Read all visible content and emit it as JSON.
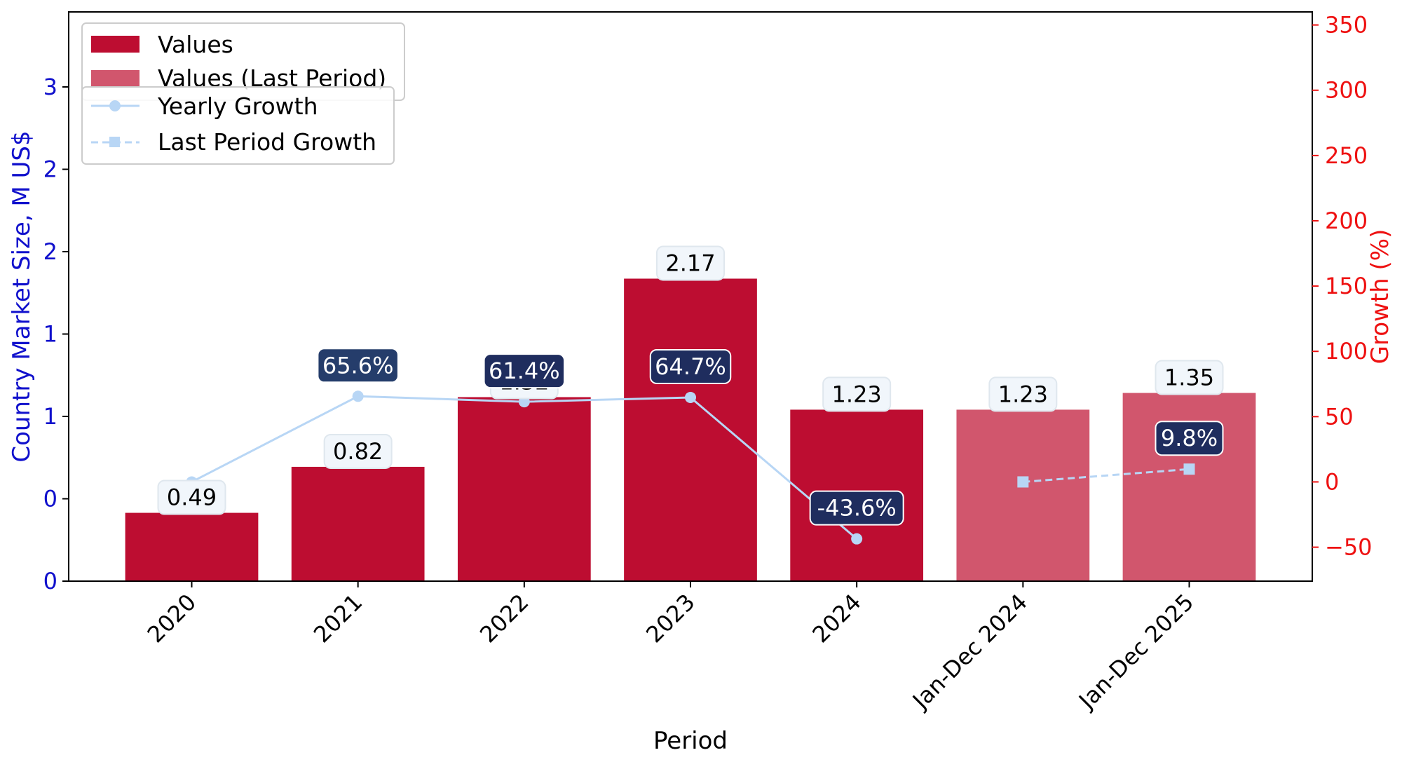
{
  "chart_data": {
    "type": "bar",
    "categories": [
      "2020",
      "2021",
      "2022",
      "2023",
      "2024",
      "Jan-Dec 2024",
      "Jan-Dec 2025"
    ],
    "series": [
      {
        "name": "Values",
        "kind": "bar",
        "values": [
          0.49,
          0.82,
          1.32,
          2.17,
          1.23,
          null,
          null
        ],
        "value_labels": [
          "0.49",
          "0.82",
          "1.32",
          "2.17",
          "1.23",
          "",
          ""
        ]
      },
      {
        "name": "Values (Last Period)",
        "kind": "bar",
        "values": [
          null,
          null,
          null,
          null,
          null,
          1.23,
          1.35
        ],
        "value_labels": [
          "",
          "",
          "",
          "",
          "",
          "1.23",
          "1.35"
        ]
      },
      {
        "name": "Yearly Growth",
        "kind": "line",
        "axis": "right",
        "values": [
          0,
          65.6,
          61.4,
          64.7,
          -43.6,
          null,
          null
        ],
        "value_labels": [
          "",
          "65.6%",
          "61.4%",
          "64.7%",
          "-43.6%",
          "",
          ""
        ]
      },
      {
        "name": "Last Period Growth",
        "kind": "line",
        "axis": "right",
        "values": [
          null,
          null,
          null,
          null,
          null,
          0,
          9.8
        ],
        "value_labels": [
          "",
          "",
          "",
          "",
          "",
          "",
          "9.8%"
        ]
      }
    ],
    "xlabel": "Period",
    "ylabel": "Country Market Size, M US$",
    "y2label": "Growth (%)",
    "left_ticks": [
      "0",
      "0",
      "1",
      "1",
      "2",
      "2",
      "3"
    ],
    "right_ticks": [
      "−50",
      "0",
      "50",
      "100",
      "150",
      "200",
      "250",
      "300",
      "350"
    ],
    "ylim_right": [
      -76,
      360
    ],
    "grid": false,
    "legend_placement": "top-left",
    "colors": {
      "values": "#bd0d31",
      "values_last_period": "#d1566d",
      "growth_line": "#b8d6f5",
      "left_axis": "#1010cc",
      "right_axis": "#ee1111",
      "growth_label_bg": [
        "#253d6b",
        "#1f2d5e"
      ],
      "value_label_bg": "#f1f6fb"
    }
  }
}
